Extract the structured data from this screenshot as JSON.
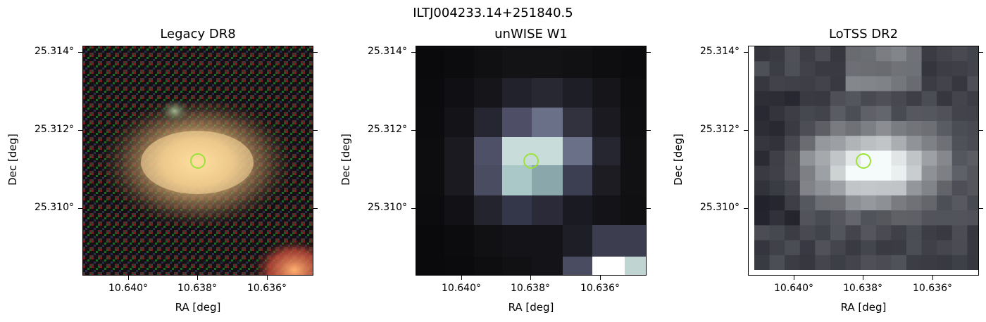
{
  "figure": {
    "suptitle": "ILTJ004233.14+251840.5"
  },
  "panels": [
    {
      "title": "Legacy DR8",
      "xlabel": "RA [deg]",
      "ylabel": "Dec [deg]",
      "yticks": [
        "25.314°",
        "25.312°",
        "25.310°"
      ],
      "xticks": [
        "10.640°",
        "10.638°",
        "10.636°"
      ]
    },
    {
      "title": "unWISE W1",
      "xlabel": "RA [deg]",
      "ylabel": "Dec [deg]",
      "yticks": [
        "25.314°",
        "25.312°",
        "25.310°"
      ],
      "xticks": [
        "10.640°",
        "10.638°",
        "10.636°"
      ]
    },
    {
      "title": "LoTSS DR2",
      "xlabel": "RA [deg]",
      "ylabel": "Dec [deg]",
      "yticks": [
        "25.314°",
        "25.312°",
        "25.310°"
      ],
      "xticks": [
        "10.640°",
        "10.638°",
        "10.636°"
      ]
    }
  ],
  "colors": {
    "marker": "#9be33a"
  }
}
